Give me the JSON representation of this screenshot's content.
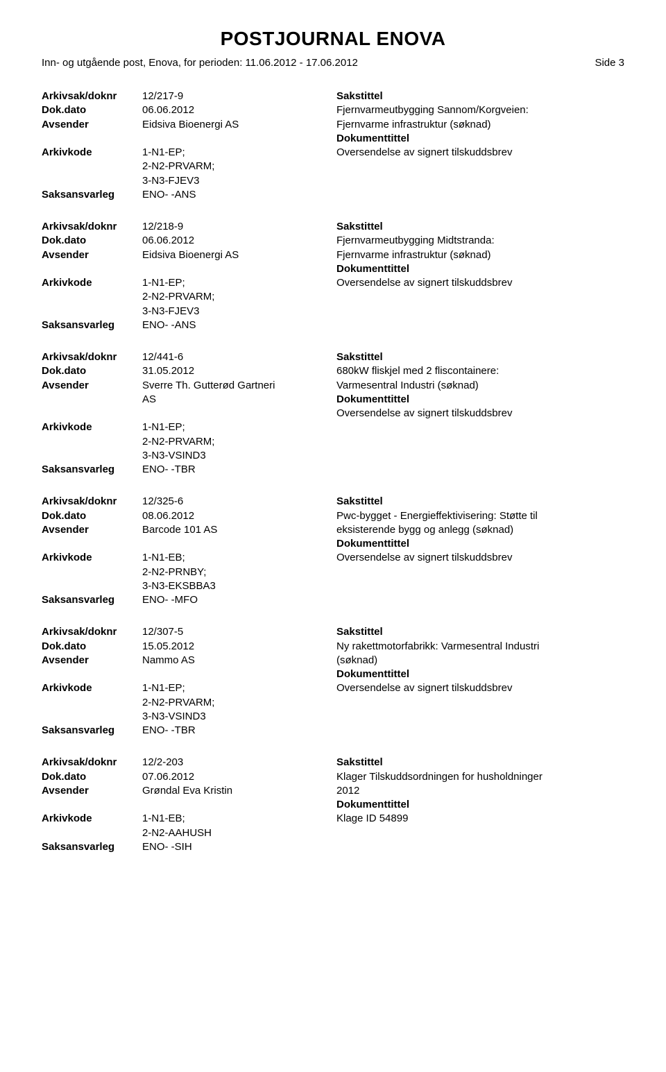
{
  "title": "POSTJOURNAL ENOVA",
  "subheader_left": "Inn- og utgående post, Enova, for perioden: 11.06.2012 - 17.06.2012",
  "subheader_right": "Side 3",
  "labels": {
    "arkivsak": "Arkivsak/doknr",
    "dokdato": "Dok.dato",
    "avsender": "Avsender",
    "arkivkode": "Arkivkode",
    "saksansvarleg": "Saksansvarleg",
    "sakstittel": "Sakstittel",
    "dokumenttittel": "Dokumenttittel"
  },
  "records": [
    {
      "arkivsak": "12/217-9",
      "dokdato": "06.06.2012",
      "avsender": "Eidsiva Bioenergi AS",
      "arkivkode_lines": [
        "1-N1-EP;",
        "2-N2-PRVARM;",
        "3-N3-FJEV3"
      ],
      "saksansvarleg": "ENO- -ANS",
      "sakstittel_lines": [
        "Fjernvarmeutbygging Sannom/Korgveien:",
        "Fjernvarme infrastruktur (søknad)"
      ],
      "doktittel": "Oversendelse av signert tilskuddsbrev"
    },
    {
      "arkivsak": "12/218-9",
      "dokdato": "06.06.2012",
      "avsender": "Eidsiva Bioenergi AS",
      "arkivkode_lines": [
        "1-N1-EP;",
        "2-N2-PRVARM;",
        "3-N3-FJEV3"
      ],
      "saksansvarleg": "ENO- -ANS",
      "sakstittel_lines": [
        "Fjernvarmeutbygging Midtstranda:",
        "Fjernvarme infrastruktur (søknad)"
      ],
      "doktittel": "Oversendelse av signert tilskuddsbrev"
    },
    {
      "arkivsak": "12/441-6",
      "dokdato": "31.05.2012",
      "avsender_lines": [
        "Sverre Th. Gutterød Gartneri",
        "AS"
      ],
      "arkivkode_lines": [
        "1-N1-EP;",
        "2-N2-PRVARM;",
        "3-N3-VSIND3"
      ],
      "saksansvarleg": "ENO- -TBR",
      "sakstittel_lines": [
        "680kW fliskjel med 2 fliscontainere:",
        "Varmesentral Industri (søknad)"
      ],
      "doktittel": "Oversendelse av signert tilskuddsbrev"
    },
    {
      "arkivsak": "12/325-6",
      "dokdato": "08.06.2012",
      "avsender": "Barcode 101 AS",
      "arkivkode_lines": [
        "1-N1-EB;",
        "2-N2-PRNBY;",
        "3-N3-EKSBBA3"
      ],
      "saksansvarleg": "ENO- -MFO",
      "sakstittel_lines": [
        "Pwc-bygget - Energieffektivisering: Støtte til",
        "eksisterende bygg og anlegg (søknad)"
      ],
      "doktittel": "Oversendelse av signert tilskuddsbrev"
    },
    {
      "arkivsak": "12/307-5",
      "dokdato": "15.05.2012",
      "avsender": "Nammo AS",
      "arkivkode_lines": [
        "1-N1-EP;",
        "2-N2-PRVARM;",
        "3-N3-VSIND3"
      ],
      "saksansvarleg": "ENO- -TBR",
      "sakstittel_lines": [
        "Ny rakettmotorfabrikk: Varmesentral Industri",
        "(søknad)"
      ],
      "doktittel": "Oversendelse av signert tilskuddsbrev"
    },
    {
      "arkivsak": "12/2-203",
      "dokdato": "07.06.2012",
      "avsender": "Grøndal Eva Kristin",
      "arkivkode_lines": [
        "1-N1-EB;",
        "2-N2-AAHUSH"
      ],
      "saksansvarleg": "ENO- -SIH",
      "sakstittel_lines": [
        "Klager Tilskuddsordningen for husholdninger",
        "2012"
      ],
      "doktittel": "Klage ID 54899"
    }
  ]
}
